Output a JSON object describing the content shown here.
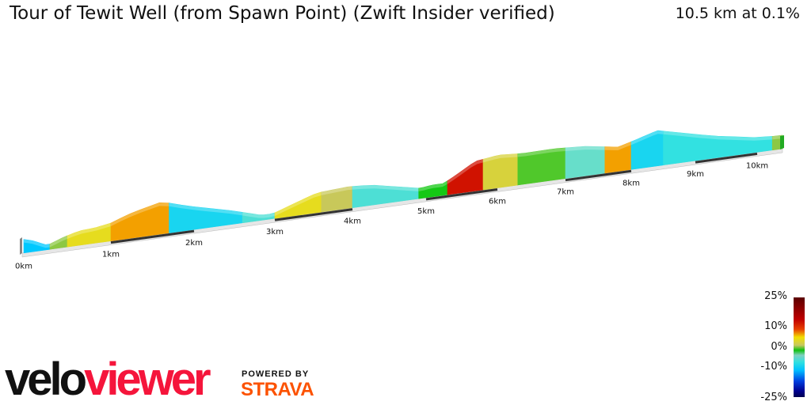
{
  "header": {
    "title": "Tour of Tewit Well (from Spawn Point) (Zwift Insider verified)",
    "summary": "10.5 km at 0.1%"
  },
  "chart_data": {
    "type": "area",
    "title": "Tour of Tewit Well (from Spawn Point) (Zwift Insider verified)",
    "distance_km": 10.5,
    "average_grade_pct": 0.1,
    "x_ticks": [
      "0km",
      "1km",
      "2km",
      "3km",
      "4km",
      "5km",
      "6km",
      "7km",
      "8km",
      "9km",
      "10km"
    ],
    "gradient_segments": [
      {
        "from_km": 0,
        "to_km": 0.3,
        "grade": -8
      },
      {
        "from_km": 0.3,
        "to_km": 0.5,
        "grade": 2
      },
      {
        "from_km": 0.5,
        "to_km": 1.0,
        "grade": 5
      },
      {
        "from_km": 1.0,
        "to_km": 1.7,
        "grade": 8
      },
      {
        "from_km": 1.7,
        "to_km": 2.6,
        "grade": -6
      },
      {
        "from_km": 2.6,
        "to_km": 3.0,
        "grade": -3
      },
      {
        "from_km": 3.0,
        "to_km": 3.6,
        "grade": 5
      },
      {
        "from_km": 3.6,
        "to_km": 4.0,
        "grade": 3
      },
      {
        "from_km": 4.0,
        "to_km": 4.9,
        "grade": -3
      },
      {
        "from_km": 4.9,
        "to_km": 5.3,
        "grade": 0
      },
      {
        "from_km": 5.3,
        "to_km": 5.8,
        "grade": 14
      },
      {
        "from_km": 5.8,
        "to_km": 6.3,
        "grade": 4
      },
      {
        "from_km": 6.3,
        "to_km": 7.0,
        "grade": 1
      },
      {
        "from_km": 7.0,
        "to_km": 7.6,
        "grade": -2
      },
      {
        "from_km": 7.6,
        "to_km": 8.0,
        "grade": 8
      },
      {
        "from_km": 8.0,
        "to_km": 8.5,
        "grade": -6
      },
      {
        "from_km": 8.5,
        "to_km": 10.3,
        "grade": -4
      },
      {
        "from_km": 10.3,
        "to_km": 10.5,
        "grade": 2
      }
    ],
    "legend": {
      "title": "",
      "ticks": [
        "25%",
        "10%",
        "0%",
        "-10%",
        "-25%"
      ],
      "range": [
        -25,
        25
      ]
    }
  },
  "branding": {
    "velo": "velo",
    "viewer": "viewer",
    "powered": "POWERED BY",
    "strava": "STRAVA"
  }
}
